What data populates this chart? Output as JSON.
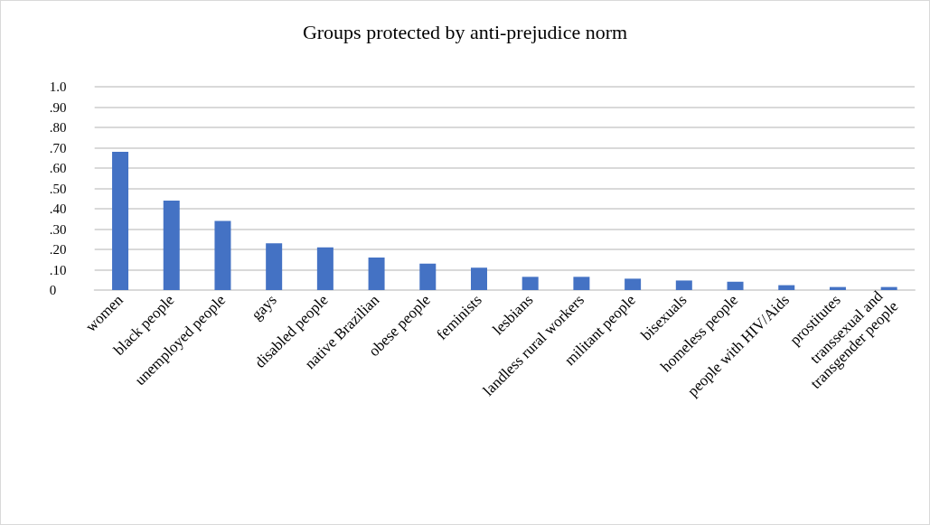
{
  "chart_data": {
    "type": "bar",
    "title": "Groups protected by anti-prejudice norm",
    "categories": [
      "women",
      "black people",
      "unemployed people",
      "gays",
      "disabled people",
      "native Brazilian",
      "obese people",
      "feminists",
      "lesbians",
      "landless rural workers",
      "militant people",
      "bisexuals",
      "homeless people",
      "people with HIV/Aids",
      "prostitutes",
      "transsexual and transgender people"
    ],
    "values": [
      0.68,
      0.44,
      0.34,
      0.23,
      0.21,
      0.16,
      0.13,
      0.11,
      0.065,
      0.065,
      0.056,
      0.047,
      0.041,
      0.024,
      0.015,
      0.015
    ],
    "color": "#4472c4",
    "ylim": [
      0,
      1
    ],
    "yticks": [
      0,
      {
        "value": 0.1,
        "label": ".10"
      },
      {
        "value": 0.2,
        "label": ".20"
      },
      {
        "value": 0.3,
        "label": ".30"
      },
      {
        "value": 0.4,
        "label": ".40"
      },
      {
        "value": 0.5,
        "label": ".50"
      },
      {
        "value": 0.6,
        "label": ".60"
      },
      {
        "value": 0.7,
        "label": ".70"
      },
      {
        "value": 0.8,
        "label": ".80"
      },
      {
        "value": 0.9,
        "label": ".90"
      },
      {
        "value": 1,
        "label": "1.0"
      }
    ],
    "grid": "y"
  }
}
